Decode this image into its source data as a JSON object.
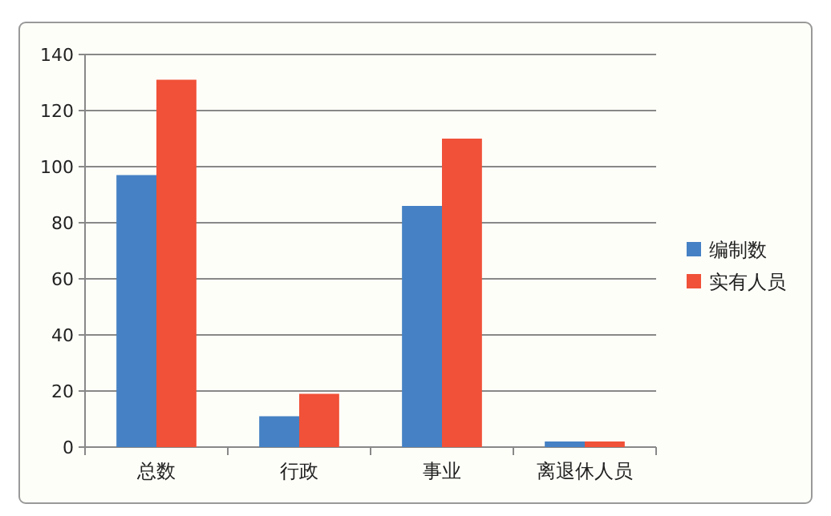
{
  "chart_data": {
    "type": "bar",
    "categories": [
      "总数",
      "行政",
      "事业",
      "离退休人员"
    ],
    "series": [
      {
        "name": "编制数",
        "color": "#4581c4",
        "values": [
          97,
          11,
          86,
          2
        ]
      },
      {
        "name": "实有人员",
        "color": "#f05138",
        "values": [
          131,
          19,
          110,
          2
        ]
      }
    ],
    "ylim": [
      0,
      140
    ],
    "yticks": [
      0,
      20,
      40,
      60,
      80,
      100,
      120,
      140
    ],
    "grid": "y",
    "legend": "right"
  }
}
